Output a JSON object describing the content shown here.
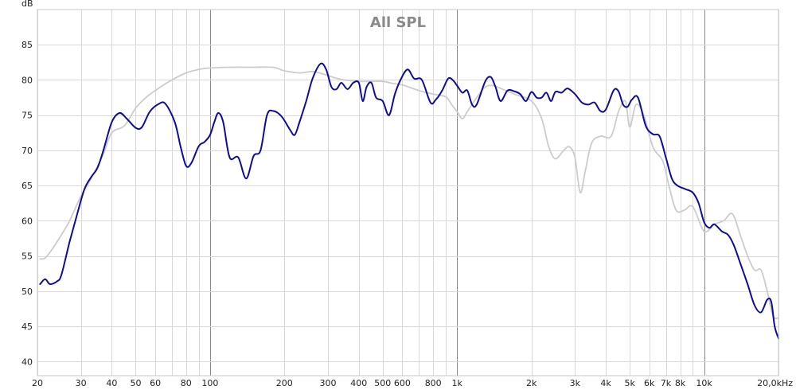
{
  "chart_data": {
    "type": "line",
    "title": "All SPL",
    "ylabel": "dB",
    "xlabel": "",
    "x_scale": "log",
    "xlim": [
      20,
      20000
    ],
    "ylim": [
      38,
      90
    ],
    "grid": true,
    "y_ticks": [
      40,
      45,
      50,
      55,
      60,
      65,
      70,
      75,
      80,
      85
    ],
    "x_ticks": [
      {
        "value": 20,
        "label": "20"
      },
      {
        "value": 30,
        "label": "30"
      },
      {
        "value": 40,
        "label": "40"
      },
      {
        "value": 50,
        "label": "50"
      },
      {
        "value": 60,
        "label": "60"
      },
      {
        "value": 80,
        "label": "80"
      },
      {
        "value": 100,
        "label": "100"
      },
      {
        "value": 200,
        "label": "200"
      },
      {
        "value": 300,
        "label": "300"
      },
      {
        "value": 400,
        "label": "400"
      },
      {
        "value": 500,
        "label": "500"
      },
      {
        "value": 600,
        "label": "600"
      },
      {
        "value": 800,
        "label": "800"
      },
      {
        "value": 1000,
        "label": "1k"
      },
      {
        "value": 2000,
        "label": "2k"
      },
      {
        "value": 3000,
        "label": "3k"
      },
      {
        "value": 4000,
        "label": "4k"
      },
      {
        "value": 5000,
        "label": "5k"
      },
      {
        "value": 6000,
        "label": "6k"
      },
      {
        "value": 7000,
        "label": "7k"
      },
      {
        "value": 8000,
        "label": "8k"
      },
      {
        "value": 10000,
        "label": "10k"
      },
      {
        "value": 20000,
        "label": "20,0kHz"
      }
    ],
    "series": [
      {
        "color": "#cccccc",
        "points": [
          [
            20.5,
            54.6
          ],
          [
            21.5,
            54.7
          ],
          [
            23,
            56
          ],
          [
            25,
            58
          ],
          [
            27,
            60
          ],
          [
            30,
            63.5
          ],
          [
            33,
            66
          ],
          [
            37,
            69.5
          ],
          [
            40,
            72.5
          ],
          [
            45,
            73.5
          ],
          [
            50,
            76
          ],
          [
            55,
            77.5
          ],
          [
            60,
            78.5
          ],
          [
            70,
            80
          ],
          [
            80,
            81
          ],
          [
            90,
            81.5
          ],
          [
            100,
            81.7
          ],
          [
            120,
            81.8
          ],
          [
            150,
            81.8
          ],
          [
            180,
            81.8
          ],
          [
            200,
            81.3
          ],
          [
            230,
            81
          ],
          [
            260,
            81.2
          ],
          [
            290,
            80.8
          ],
          [
            320,
            80.3
          ],
          [
            350,
            80
          ],
          [
            400,
            79.8
          ],
          [
            450,
            79.8
          ],
          [
            500,
            79.8
          ],
          [
            550,
            79.5
          ],
          [
            600,
            79.3
          ],
          [
            700,
            78.5
          ],
          [
            800,
            78
          ],
          [
            900,
            77.6
          ],
          [
            950,
            76.5
          ],
          [
            1000,
            75.5
          ],
          [
            1050,
            74.5
          ],
          [
            1100,
            75.5
          ],
          [
            1200,
            77.5
          ],
          [
            1300,
            79
          ],
          [
            1400,
            79.2
          ],
          [
            1500,
            78.8
          ],
          [
            1700,
            78
          ],
          [
            2000,
            77
          ],
          [
            2200,
            74.5
          ],
          [
            2350,
            70.5
          ],
          [
            2500,
            68.8
          ],
          [
            2700,
            70
          ],
          [
            2850,
            70.5
          ],
          [
            3000,
            69
          ],
          [
            3150,
            64
          ],
          [
            3300,
            67
          ],
          [
            3500,
            71
          ],
          [
            3800,
            72
          ],
          [
            4200,
            72
          ],
          [
            4500,
            75.5
          ],
          [
            4800,
            77
          ],
          [
            5000,
            73.3
          ],
          [
            5300,
            76.5
          ],
          [
            5700,
            75
          ],
          [
            6200,
            70.5
          ],
          [
            6800,
            68.5
          ],
          [
            7200,
            65
          ],
          [
            7700,
            61.5
          ],
          [
            8300,
            61.5
          ],
          [
            9000,
            62
          ],
          [
            10000,
            58.5
          ],
          [
            11000,
            59.5
          ],
          [
            12000,
            60
          ],
          [
            13000,
            61
          ],
          [
            14000,
            58
          ],
          [
            15000,
            55
          ],
          [
            16000,
            53
          ],
          [
            17000,
            53
          ],
          [
            18000,
            50
          ],
          [
            19000,
            46.5
          ],
          [
            20000,
            46.2
          ]
        ]
      },
      {
        "color": "#0d0d9a",
        "points": [
          [
            20.5,
            51
          ],
          [
            21.5,
            51.7
          ],
          [
            22.5,
            51
          ],
          [
            24,
            51.4
          ],
          [
            25,
            52.3
          ],
          [
            27,
            57
          ],
          [
            29,
            61
          ],
          [
            31,
            64.5
          ],
          [
            33,
            66.2
          ],
          [
            35,
            67.5
          ],
          [
            37,
            70
          ],
          [
            40,
            74
          ],
          [
            43,
            75.3
          ],
          [
            46,
            74.5
          ],
          [
            50,
            73.2
          ],
          [
            53,
            73.3
          ],
          [
            57,
            75.5
          ],
          [
            62,
            76.6
          ],
          [
            66,
            76.6
          ],
          [
            72,
            74
          ],
          [
            76,
            70.5
          ],
          [
            80,
            67.8
          ],
          [
            84,
            68.2
          ],
          [
            90,
            70.6
          ],
          [
            95,
            71.2
          ],
          [
            100,
            72.2
          ],
          [
            104,
            74
          ],
          [
            108,
            75.3
          ],
          [
            113,
            74
          ],
          [
            120,
            69
          ],
          [
            130,
            69
          ],
          [
            140,
            66
          ],
          [
            150,
            69.2
          ],
          [
            160,
            70
          ],
          [
            170,
            75
          ],
          [
            180,
            75.6
          ],
          [
            195,
            74.8
          ],
          [
            210,
            73
          ],
          [
            220,
            72.2
          ],
          [
            230,
            74
          ],
          [
            245,
            77
          ],
          [
            260,
            80.2
          ],
          [
            280,
            82.3
          ],
          [
            295,
            81.5
          ],
          [
            310,
            79
          ],
          [
            325,
            78.7
          ],
          [
            340,
            79.6
          ],
          [
            360,
            78.7
          ],
          [
            380,
            79.6
          ],
          [
            400,
            79.6
          ],
          [
            415,
            77
          ],
          [
            430,
            79
          ],
          [
            450,
            79.6
          ],
          [
            470,
            77.5
          ],
          [
            500,
            77
          ],
          [
            530,
            75
          ],
          [
            560,
            78
          ],
          [
            590,
            80
          ],
          [
            630,
            81.5
          ],
          [
            670,
            80.2
          ],
          [
            720,
            80
          ],
          [
            780,
            76.8
          ],
          [
            820,
            77.2
          ],
          [
            870,
            78.5
          ],
          [
            920,
            80.2
          ],
          [
            960,
            80
          ],
          [
            1000,
            79.2
          ],
          [
            1050,
            78.2
          ],
          [
            1100,
            78.5
          ],
          [
            1150,
            76.5
          ],
          [
            1200,
            76.5
          ],
          [
            1300,
            79.8
          ],
          [
            1370,
            80.4
          ],
          [
            1430,
            79
          ],
          [
            1500,
            77
          ],
          [
            1600,
            78.5
          ],
          [
            1700,
            78.4
          ],
          [
            1800,
            78
          ],
          [
            1900,
            77
          ],
          [
            2000,
            78.3
          ],
          [
            2100,
            77.5
          ],
          [
            2200,
            77.5
          ],
          [
            2300,
            78.2
          ],
          [
            2400,
            77
          ],
          [
            2500,
            78.3
          ],
          [
            2650,
            78.2
          ],
          [
            2800,
            78.8
          ],
          [
            3000,
            78
          ],
          [
            3200,
            76.8
          ],
          [
            3400,
            76.5
          ],
          [
            3600,
            76.8
          ],
          [
            3800,
            75.6
          ],
          [
            4000,
            75.8
          ],
          [
            4300,
            78.5
          ],
          [
            4500,
            78.4
          ],
          [
            4700,
            76.5
          ],
          [
            4900,
            76.2
          ],
          [
            5100,
            77.2
          ],
          [
            5400,
            77.5
          ],
          [
            5800,
            73.5
          ],
          [
            6200,
            72.3
          ],
          [
            6600,
            72
          ],
          [
            7000,
            69
          ],
          [
            7400,
            66
          ],
          [
            7800,
            65
          ],
          [
            8400,
            64.5
          ],
          [
            9000,
            64
          ],
          [
            9500,
            62.5
          ],
          [
            10000,
            59.8
          ],
          [
            10500,
            59
          ],
          [
            11000,
            59.5
          ],
          [
            11800,
            58.5
          ],
          [
            12500,
            58
          ],
          [
            13200,
            56.5
          ],
          [
            14000,
            54
          ],
          [
            15000,
            51
          ],
          [
            16000,
            48
          ],
          [
            17000,
            47
          ],
          [
            18000,
            48.8
          ],
          [
            18700,
            48.5
          ],
          [
            19300,
            45
          ],
          [
            20000,
            43.3
          ]
        ]
      }
    ]
  }
}
